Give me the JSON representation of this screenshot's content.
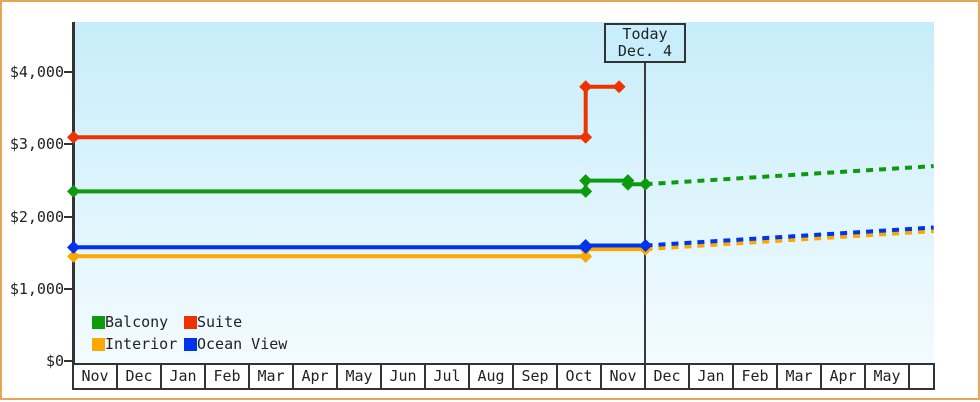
{
  "frame": {
    "border_color": "#E9A45C"
  },
  "chart_data": {
    "type": "line",
    "title": "",
    "x_axis": {
      "unit": "month",
      "tick_labels": [
        "Nov",
        "Dec",
        "Jan",
        "Feb",
        "Mar",
        "Apr",
        "May",
        "Jun",
        "Jul",
        "Aug",
        "Sep",
        "Oct",
        "Nov",
        "Dec",
        "Jan",
        "Feb",
        "Mar",
        "Apr",
        "May"
      ]
    },
    "y_axis": {
      "tick_labels": [
        "$0",
        "$1,000",
        "$2,000",
        "$3,000",
        "$4,000"
      ],
      "tick_values": [
        0,
        1000,
        2000,
        3000,
        4000
      ],
      "ylim": [
        0,
        4700
      ],
      "grid": false
    },
    "today_marker": {
      "label_line1": "Today",
      "label_line2": "Dec. 4",
      "month_position": 13.0
    },
    "series": [
      {
        "name": "Interior",
        "color": "#FBA800",
        "solid_points": [
          [
            0,
            1450
          ],
          [
            11.64,
            1450
          ],
          [
            11.64,
            1550
          ],
          [
            13.0,
            1550
          ]
        ],
        "forecast_points": [
          [
            13.0,
            1550
          ],
          [
            19.55,
            1800
          ]
        ]
      },
      {
        "name": "Ocean View",
        "color": "#0033EE",
        "solid_points": [
          [
            0,
            1575
          ],
          [
            11.64,
            1575
          ],
          [
            11.64,
            1600
          ],
          [
            13.0,
            1600
          ]
        ],
        "forecast_points": [
          [
            13.0,
            1600
          ],
          [
            19.55,
            1850
          ]
        ]
      },
      {
        "name": "Suite",
        "color": "#EE3300",
        "solid_points": [
          [
            0,
            3100
          ],
          [
            11.64,
            3100
          ],
          [
            11.64,
            3800
          ],
          [
            12.4,
            3800
          ]
        ],
        "forecast_points": []
      },
      {
        "name": "Balcony",
        "color": "#0D9B0D",
        "solid_points": [
          [
            0,
            2350
          ],
          [
            11.64,
            2350
          ],
          [
            11.64,
            2500
          ],
          [
            12.6,
            2500
          ],
          [
            12.6,
            2450
          ],
          [
            13.0,
            2450
          ]
        ],
        "forecast_points": [
          [
            13.0,
            2450
          ],
          [
            19.55,
            2700
          ]
        ]
      }
    ],
    "legend": {
      "position": "bottom-left-inside",
      "columns": 2,
      "items": [
        {
          "label": "Balcony",
          "color": "#0D9B0D"
        },
        {
          "label": "Suite",
          "color": "#EE3300"
        },
        {
          "label": "Interior",
          "color": "#FBA800"
        },
        {
          "label": "Ocean View",
          "color": "#0033EE"
        }
      ]
    }
  }
}
